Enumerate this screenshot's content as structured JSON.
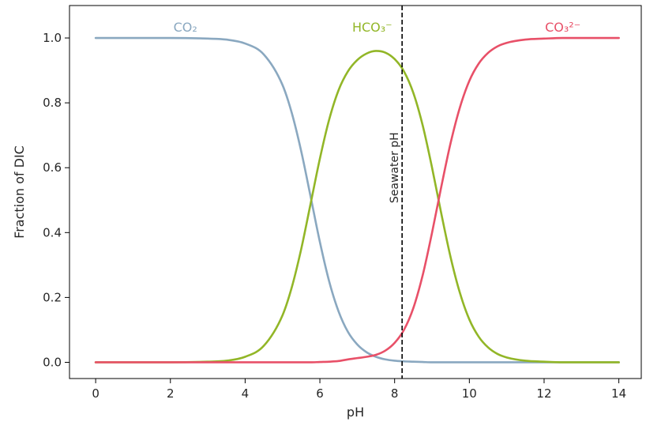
{
  "chart_data": {
    "type": "line",
    "xlabel": "pH",
    "ylabel": "Fraction of DIC",
    "xlim": [
      -0.7,
      14.6
    ],
    "ylim": [
      -0.05,
      1.1
    ],
    "xticks": [
      0,
      2,
      4,
      6,
      8,
      10,
      12,
      14
    ],
    "yticks": [
      0.0,
      0.2,
      0.4,
      0.6,
      0.8,
      1.0
    ],
    "xtick_labels": [
      "0",
      "2",
      "4",
      "6",
      "8",
      "10",
      "12",
      "14"
    ],
    "ytick_labels": [
      "0.0",
      "0.2",
      "0.4",
      "0.6",
      "0.8",
      "1.0"
    ],
    "grid": false,
    "x": [
      0.0,
      1.0,
      2.0,
      3.0,
      3.5,
      4.0,
      4.5,
      5.0,
      5.25,
      5.5,
      5.75,
      6.0,
      6.25,
      6.5,
      6.75,
      7.0,
      7.25,
      7.5,
      7.75,
      8.0,
      8.25,
      8.5,
      8.75,
      9.0,
      9.25,
      9.5,
      9.75,
      10.0,
      10.25,
      10.5,
      10.75,
      11.0,
      11.5,
      12.0,
      12.5,
      13.0,
      14.0
    ],
    "series": [
      {
        "name": "CO₂",
        "color": "#8aa8c0",
        "values": [
          1.0,
          1.0,
          1.0,
          0.998,
          0.995,
          0.983,
          0.949,
          0.855,
          0.768,
          0.651,
          0.512,
          0.371,
          0.249,
          0.157,
          0.094,
          0.055,
          0.031,
          0.017,
          0.009,
          0.005,
          0.003,
          0.002,
          0.001,
          0.0,
          0.0,
          0.0,
          0.0,
          0.0,
          0.0,
          0.0,
          0.0,
          0.0,
          0.0,
          0.0,
          0.0,
          0.0,
          0.0
        ]
      },
      {
        "name": "HCO₃⁻",
        "color": "#92b627",
        "values": [
          0.0,
          0.0,
          0.0,
          0.002,
          0.005,
          0.017,
          0.051,
          0.145,
          0.232,
          0.349,
          0.488,
          0.628,
          0.749,
          0.839,
          0.897,
          0.932,
          0.952,
          0.96,
          0.955,
          0.935,
          0.897,
          0.831,
          0.731,
          0.601,
          0.458,
          0.323,
          0.213,
          0.132,
          0.079,
          0.046,
          0.026,
          0.015,
          0.005,
          0.002,
          0.0,
          0.0,
          0.0
        ]
      },
      {
        "name": "CO₃²⁻",
        "color": "#e85068",
        "values": [
          0.0,
          0.0,
          0.0,
          0.0,
          0.0,
          0.0,
          0.0,
          0.0,
          0.0,
          0.0,
          0.0,
          0.001,
          0.002,
          0.004,
          0.009,
          0.013,
          0.017,
          0.023,
          0.036,
          0.06,
          0.1,
          0.167,
          0.268,
          0.399,
          0.542,
          0.677,
          0.787,
          0.868,
          0.921,
          0.954,
          0.974,
          0.985,
          0.995,
          0.998,
          1.0,
          1.0,
          1.0
        ]
      }
    ],
    "series_labels": [
      {
        "text": "CO₂",
        "x": 2.4,
        "y": 1.02,
        "color": "#8aa8c0"
      },
      {
        "text": "HCO₃⁻",
        "x": 7.4,
        "y": 1.02,
        "color": "#92b627"
      },
      {
        "text": "CO₃²⁻",
        "x": 12.5,
        "y": 1.02,
        "color": "#e85068"
      }
    ],
    "reference_line": {
      "x": 8.2,
      "label": "Seawater pH",
      "style": "dashed",
      "color": "#000000"
    }
  }
}
